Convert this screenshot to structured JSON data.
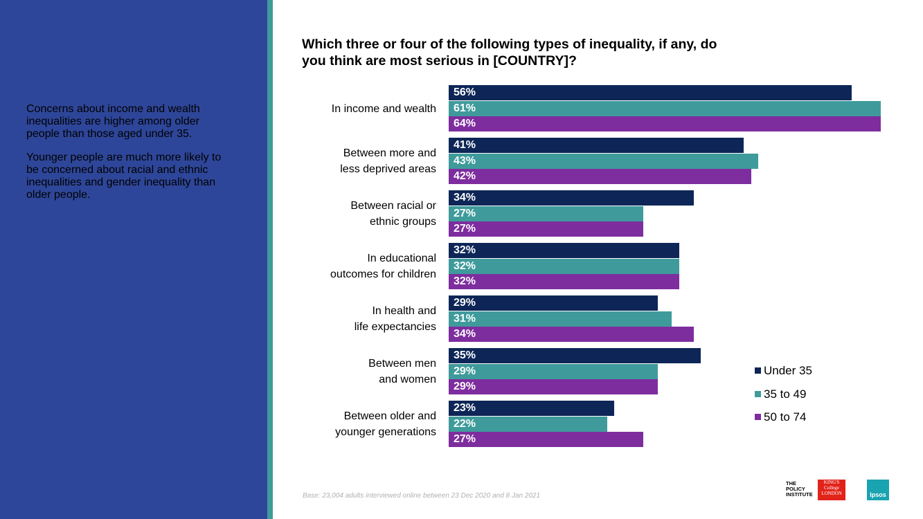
{
  "sidebar": {
    "paragraphs": [
      "Concerns about income and wealth inequalities are higher among older people than those aged under 35.",
      "Younger people are much more likely to be concerned about racial and ethnic inequalities and gender inequality than older people."
    ]
  },
  "chart_data": {
    "type": "bar",
    "orientation": "horizontal",
    "title": "Which three or four of the following types of inequality, if any, do you think are most serious in [COUNTRY]?",
    "categories": [
      "In income and wealth",
      "Between more and\nless deprived areas",
      "Between racial or\nethnic groups",
      "In educational\noutcomes for children",
      "In health and\nlife expectancies",
      "Between men\nand women",
      "Between older and\nyounger generations"
    ],
    "series": [
      {
        "name": "Under 35",
        "color": "#0d2657",
        "values": [
          56,
          41,
          34,
          32,
          29,
          35,
          23
        ],
        "value_labels": [
          "56%",
          "41%",
          "34%",
          "32%",
          "29%",
          "35%",
          "23%"
        ]
      },
      {
        "name": "35 to 49",
        "color": "#3f9b9b",
        "values": [
          61,
          43,
          27,
          32,
          31,
          29,
          22
        ],
        "value_labels": [
          "61%",
          "43%",
          "27%",
          "32%",
          "31%",
          "29%",
          "22%"
        ]
      },
      {
        "name": "50 to 74",
        "color": "#7e2d9e",
        "values": [
          64,
          42,
          27,
          32,
          34,
          29,
          27
        ],
        "value_labels": [
          "64%",
          "42%",
          "27%",
          "32%",
          "34%",
          "29%",
          "27%"
        ]
      }
    ],
    "xlim": [
      0,
      60
    ],
    "legend": "right",
    "note": "Base: 23,004 adults interviewed online between 23 Dec 2020 and 8 Jan 2021"
  },
  "logos": {
    "policy": "THE POLICY INSTITUTE",
    "kings": "KING'S College LONDON",
    "ipsos": "Ipsos"
  }
}
